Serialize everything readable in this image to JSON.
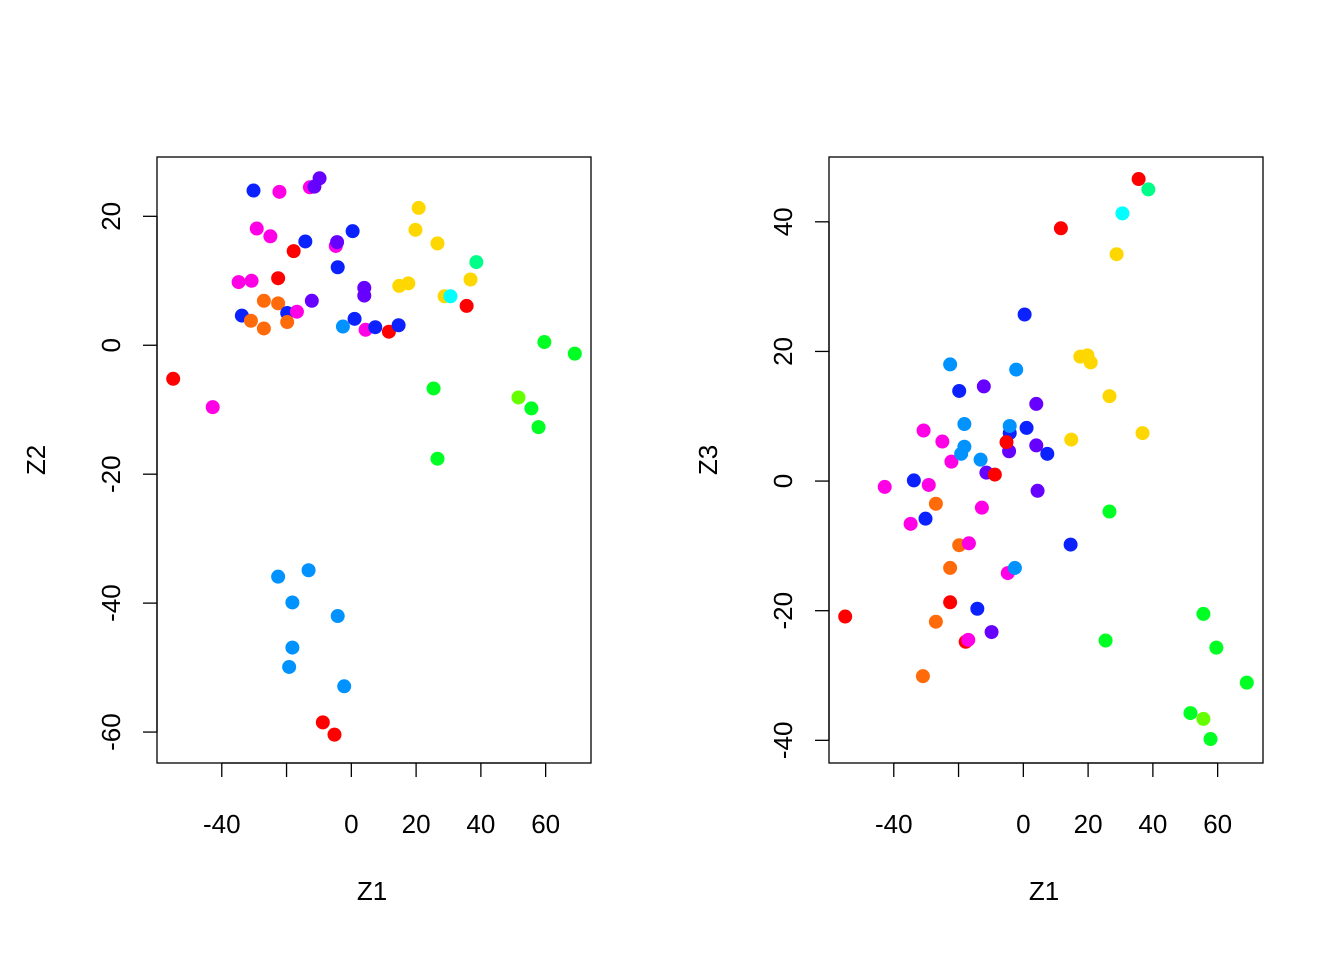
{
  "chart_data": [
    {
      "type": "scatter",
      "title": "",
      "xlabel": "Z1",
      "ylabel": "Z2",
      "xlim": [
        -60,
        74
      ],
      "ylim": [
        -64.8,
        29.2
      ],
      "x_ticks": [
        -40,
        -20,
        0,
        20,
        40,
        60
      ],
      "x_tick_labels": [
        "-40",
        "",
        "0",
        "20",
        "40",
        "60"
      ],
      "y_ticks": [
        -60,
        -40,
        -20,
        0,
        20
      ],
      "y_tick_labels": [
        "-60",
        "-40",
        "-20",
        "0",
        "20"
      ],
      "grid": false,
      "points": [
        {
          "x": -55,
          "y": -5.2,
          "color": "#ff0000"
        },
        {
          "x": -42.8,
          "y": -9.6,
          "color": "#ff00e6"
        },
        {
          "x": -33.8,
          "y": 4.6,
          "color": "#0b22ff"
        },
        {
          "x": -34.8,
          "y": 9.8,
          "color": "#ff00e6"
        },
        {
          "x": -30.2,
          "y": 24,
          "color": "#0b22ff"
        },
        {
          "x": -29.2,
          "y": 18.1,
          "color": "#ff00e6"
        },
        {
          "x": -30.8,
          "y": 10,
          "color": "#ff00e6"
        },
        {
          "x": -31,
          "y": 3.8,
          "color": "#ff6a0a"
        },
        {
          "x": -27,
          "y": 6.9,
          "color": "#ff6a0a"
        },
        {
          "x": -27,
          "y": 2.6,
          "color": "#ff6a0a"
        },
        {
          "x": -25,
          "y": 16.9,
          "color": "#ff00e6"
        },
        {
          "x": -22.2,
          "y": 23.8,
          "color": "#ff00e6"
        },
        {
          "x": -22.6,
          "y": 10.4,
          "color": "#ff0000"
        },
        {
          "x": -22.6,
          "y": 6.5,
          "color": "#ff6a0a"
        },
        {
          "x": -19.8,
          "y": 5,
          "color": "#0b22ff"
        },
        {
          "x": -19.8,
          "y": 3.6,
          "color": "#ff6a0a"
        },
        {
          "x": -17.8,
          "y": 14.6,
          "color": "#ff0000"
        },
        {
          "x": -16.8,
          "y": 5.2,
          "color": "#ff00e6"
        },
        {
          "x": -14.2,
          "y": 16.1,
          "color": "#0b22ff"
        },
        {
          "x": -12.8,
          "y": 24.5,
          "color": "#ff00e6"
        },
        {
          "x": -12.2,
          "y": 6.9,
          "color": "#6600ff"
        },
        {
          "x": -11.4,
          "y": 24.6,
          "color": "#6600ff"
        },
        {
          "x": -9.8,
          "y": 25.9,
          "color": "#6600ff"
        },
        {
          "x": -4.8,
          "y": 15.4,
          "color": "#ff00e6"
        },
        {
          "x": -4.4,
          "y": 16,
          "color": "#6600ff"
        },
        {
          "x": -4.2,
          "y": 12.1,
          "color": "#0b22ff"
        },
        {
          "x": -2.6,
          "y": 2.9,
          "color": "#0093ff"
        },
        {
          "x": 0.4,
          "y": 17.7,
          "color": "#0b22ff"
        },
        {
          "x": 1,
          "y": 4.1,
          "color": "#0b22ff"
        },
        {
          "x": 4,
          "y": 8.9,
          "color": "#6600ff"
        },
        {
          "x": 4,
          "y": 7.7,
          "color": "#6600ff"
        },
        {
          "x": 4.4,
          "y": 2.4,
          "color": "#ff00e6"
        },
        {
          "x": 7.4,
          "y": 2.8,
          "color": "#0b22ff"
        },
        {
          "x": 11.6,
          "y": 2.1,
          "color": "#ff0000"
        },
        {
          "x": 14.6,
          "y": 3.1,
          "color": "#0b22ff"
        },
        {
          "x": 14.8,
          "y": 9.2,
          "color": "#ffd700"
        },
        {
          "x": 17.6,
          "y": 9.6,
          "color": "#ffd700"
        },
        {
          "x": 19.8,
          "y": 17.9,
          "color": "#ffd700"
        },
        {
          "x": 20.8,
          "y": 21.3,
          "color": "#ffd700"
        },
        {
          "x": 25.4,
          "y": -6.7,
          "color": "#00ff22"
        },
        {
          "x": 26.6,
          "y": 15.8,
          "color": "#ffd700"
        },
        {
          "x": 26.6,
          "y": -17.6,
          "color": "#00ff22"
        },
        {
          "x": 28.8,
          "y": 7.6,
          "color": "#ffd700"
        },
        {
          "x": 30.6,
          "y": 7.6,
          "color": "#00ffff"
        },
        {
          "x": 35.6,
          "y": 6.1,
          "color": "#ff0000"
        },
        {
          "x": 36.8,
          "y": 10.2,
          "color": "#ffd700"
        },
        {
          "x": 38.6,
          "y": 12.9,
          "color": "#00ff88"
        },
        {
          "x": 51.6,
          "y": -8.1,
          "color": "#66ff00"
        },
        {
          "x": 55.6,
          "y": -9.8,
          "color": "#00ff22"
        },
        {
          "x": 57.8,
          "y": -12.7,
          "color": "#00ff22"
        },
        {
          "x": 59.6,
          "y": 0.5,
          "color": "#00ff22"
        },
        {
          "x": 69,
          "y": -1.3,
          "color": "#00ff22"
        },
        {
          "x": -22.6,
          "y": -35.9,
          "color": "#0093ff"
        },
        {
          "x": -13.2,
          "y": -34.9,
          "color": "#0093ff"
        },
        {
          "x": -18.2,
          "y": -39.9,
          "color": "#0093ff"
        },
        {
          "x": -4.2,
          "y": -42,
          "color": "#0093ff"
        },
        {
          "x": -18.2,
          "y": -46.9,
          "color": "#0093ff"
        },
        {
          "x": -19.2,
          "y": -49.9,
          "color": "#0093ff"
        },
        {
          "x": -2.2,
          "y": -52.9,
          "color": "#0093ff"
        },
        {
          "x": -8.8,
          "y": -58.5,
          "color": "#ff0000"
        },
        {
          "x": -5.2,
          "y": -60.4,
          "color": "#ff0000"
        }
      ]
    },
    {
      "type": "scatter",
      "title": "",
      "xlabel": "Z1",
      "ylabel": "Z3",
      "xlim": [
        -60,
        74
      ],
      "ylim": [
        -43.5,
        50
      ],
      "x_ticks": [
        -40,
        -20,
        0,
        20,
        40,
        60
      ],
      "x_tick_labels": [
        "-40",
        "",
        "0",
        "20",
        "40",
        "60"
      ],
      "y_ticks": [
        -40,
        -20,
        0,
        20,
        40
      ],
      "y_tick_labels": [
        "-40",
        "-20",
        "0",
        "20",
        "40"
      ],
      "grid": false,
      "points": [
        {
          "x": -55,
          "y": -20.9,
          "color": "#ff0000"
        },
        {
          "x": -42.8,
          "y": -0.9,
          "color": "#ff00e6"
        },
        {
          "x": -33.8,
          "y": 0.1,
          "color": "#0b22ff"
        },
        {
          "x": -34.8,
          "y": -6.6,
          "color": "#ff00e6"
        },
        {
          "x": -30.2,
          "y": -5.8,
          "color": "#0b22ff"
        },
        {
          "x": -29.2,
          "y": -0.6,
          "color": "#ff00e6"
        },
        {
          "x": -30.8,
          "y": 7.8,
          "color": "#ff00e6"
        },
        {
          "x": -31,
          "y": -30.1,
          "color": "#ff6a0a"
        },
        {
          "x": -27,
          "y": -21.7,
          "color": "#ff6a0a"
        },
        {
          "x": -27,
          "y": -3.5,
          "color": "#ff6a0a"
        },
        {
          "x": -25,
          "y": 6.1,
          "color": "#ff00e6"
        },
        {
          "x": -22.2,
          "y": 3,
          "color": "#ff00e6"
        },
        {
          "x": -22.6,
          "y": -18.7,
          "color": "#ff0000"
        },
        {
          "x": -22.6,
          "y": -13.4,
          "color": "#ff6a0a"
        },
        {
          "x": -19.8,
          "y": 13.9,
          "color": "#0b22ff"
        },
        {
          "x": -19.8,
          "y": -9.9,
          "color": "#ff6a0a"
        },
        {
          "x": -17.8,
          "y": -24.8,
          "color": "#ff0000"
        },
        {
          "x": -16.8,
          "y": -9.6,
          "color": "#ff00e6"
        },
        {
          "x": -14.2,
          "y": -19.7,
          "color": "#0b22ff"
        },
        {
          "x": -12.8,
          "y": -4.1,
          "color": "#ff00e6"
        },
        {
          "x": -12.2,
          "y": 14.6,
          "color": "#6600ff"
        },
        {
          "x": -11.4,
          "y": 1.3,
          "color": "#6600ff"
        },
        {
          "x": -9.8,
          "y": -23.3,
          "color": "#6600ff"
        },
        {
          "x": -4.8,
          "y": -14.2,
          "color": "#ff00e6"
        },
        {
          "x": -4.4,
          "y": 4.6,
          "color": "#6600ff"
        },
        {
          "x": -4.2,
          "y": 7.4,
          "color": "#0b22ff"
        },
        {
          "x": -2.6,
          "y": -13.4,
          "color": "#0093ff"
        },
        {
          "x": 0.4,
          "y": 25.7,
          "color": "#0b22ff"
        },
        {
          "x": 1,
          "y": 8.2,
          "color": "#0b22ff"
        },
        {
          "x": 4,
          "y": 11.9,
          "color": "#6600ff"
        },
        {
          "x": 4,
          "y": 5.5,
          "color": "#6600ff"
        },
        {
          "x": 4.4,
          "y": -1.5,
          "color": "#6600ff"
        },
        {
          "x": 7.4,
          "y": 4.2,
          "color": "#0b22ff"
        },
        {
          "x": 11.6,
          "y": 39,
          "color": "#ff0000"
        },
        {
          "x": 14.6,
          "y": -9.8,
          "color": "#0b22ff"
        },
        {
          "x": 14.8,
          "y": 6.4,
          "color": "#ffd700"
        },
        {
          "x": 17.6,
          "y": 19.2,
          "color": "#ffd700"
        },
        {
          "x": 19.8,
          "y": 19.4,
          "color": "#ffd700"
        },
        {
          "x": 20.8,
          "y": 18.3,
          "color": "#ffd700"
        },
        {
          "x": 25.4,
          "y": -24.6,
          "color": "#00ff22"
        },
        {
          "x": 26.6,
          "y": -4.7,
          "color": "#00ff22"
        },
        {
          "x": 26.6,
          "y": 13.1,
          "color": "#ffd700"
        },
        {
          "x": 28.8,
          "y": 35,
          "color": "#ffd700"
        },
        {
          "x": 30.6,
          "y": 41.3,
          "color": "#00ffff"
        },
        {
          "x": 35.6,
          "y": 46.6,
          "color": "#ff0000"
        },
        {
          "x": 36.8,
          "y": 7.4,
          "color": "#ffd700"
        },
        {
          "x": 38.6,
          "y": 45,
          "color": "#00ff88"
        },
        {
          "x": 51.6,
          "y": -35.8,
          "color": "#00ff22"
        },
        {
          "x": 55.6,
          "y": -36.7,
          "color": "#66ff00"
        },
        {
          "x": 55.6,
          "y": -20.5,
          "color": "#00ff22"
        },
        {
          "x": 57.8,
          "y": -39.8,
          "color": "#00ff22"
        },
        {
          "x": 59.6,
          "y": -25.7,
          "color": "#00ff22"
        },
        {
          "x": 69,
          "y": -31.1,
          "color": "#00ff22"
        },
        {
          "x": -18.2,
          "y": 5.3,
          "color": "#0093ff"
        },
        {
          "x": -19.2,
          "y": 4.2,
          "color": "#0093ff"
        },
        {
          "x": -18.2,
          "y": 8.8,
          "color": "#0093ff"
        },
        {
          "x": -22.6,
          "y": 18,
          "color": "#0093ff"
        },
        {
          "x": -13.2,
          "y": 3.3,
          "color": "#0093ff"
        },
        {
          "x": -4.2,
          "y": 8.5,
          "color": "#0093ff"
        },
        {
          "x": -2.2,
          "y": 17.2,
          "color": "#0093ff"
        },
        {
          "x": -5.2,
          "y": 6,
          "color": "#ff0000"
        },
        {
          "x": -8.8,
          "y": 1,
          "color": "#ff0000"
        },
        {
          "x": -17,
          "y": -24.5,
          "color": "#ff00e6"
        }
      ]
    }
  ]
}
